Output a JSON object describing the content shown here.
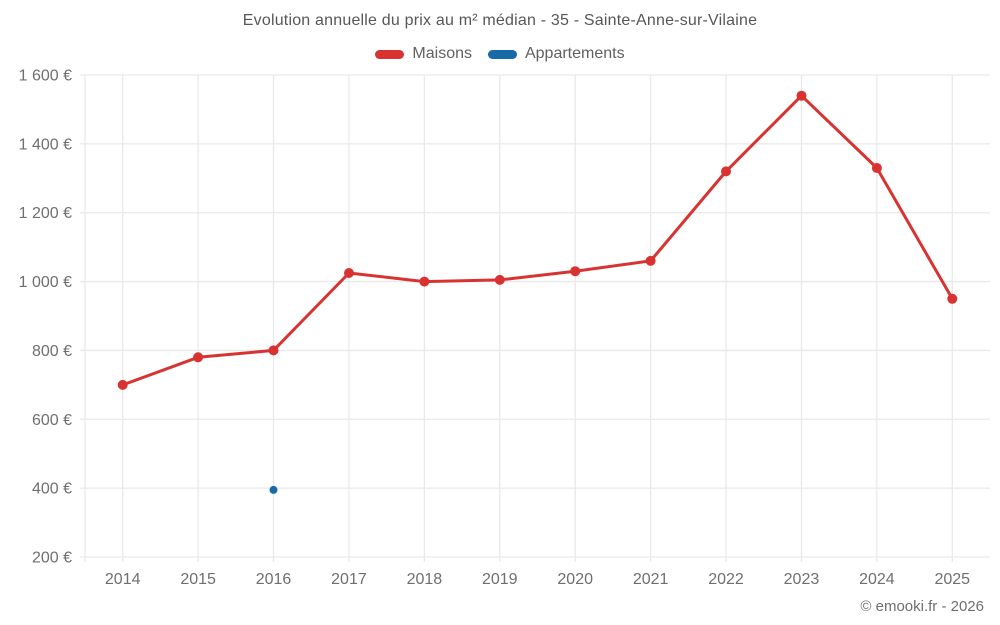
{
  "watermark": "© emooki.fr - 2026",
  "chart_data": {
    "type": "line",
    "title": "Evolution annuelle du prix au m² médian - 35 - Sainte-Anne-sur-Vilaine",
    "x": [
      "2014",
      "2015",
      "2016",
      "2017",
      "2018",
      "2019",
      "2020",
      "2021",
      "2022",
      "2023",
      "2024",
      "2025"
    ],
    "series": [
      {
        "name": "Maisons",
        "color": "#d93331",
        "marker_radius": 5,
        "line_width": 3,
        "values": [
          700,
          780,
          800,
          1025,
          1000,
          1005,
          1030,
          1060,
          1320,
          1540,
          1330,
          950
        ]
      },
      {
        "name": "Appartements",
        "color": "#1769a8",
        "marker_radius": 4,
        "line_width": 3,
        "values": [
          null,
          null,
          395,
          null,
          null,
          null,
          null,
          null,
          null,
          null,
          null,
          null
        ]
      }
    ],
    "ylabel": "",
    "xlabel": "",
    "ylim": [
      200,
      1600
    ],
    "y_ticks": [
      200,
      400,
      600,
      800,
      1000,
      1200,
      1400,
      1600
    ],
    "y_tick_labels": [
      "200 €",
      "400 €",
      "600 €",
      "800 €",
      "1 000 €",
      "1 200 €",
      "1 400 €",
      "1 600 €"
    ],
    "grid": true,
    "grid_color": "#e9e9e9",
    "legend_position": "top",
    "currency": "€"
  }
}
